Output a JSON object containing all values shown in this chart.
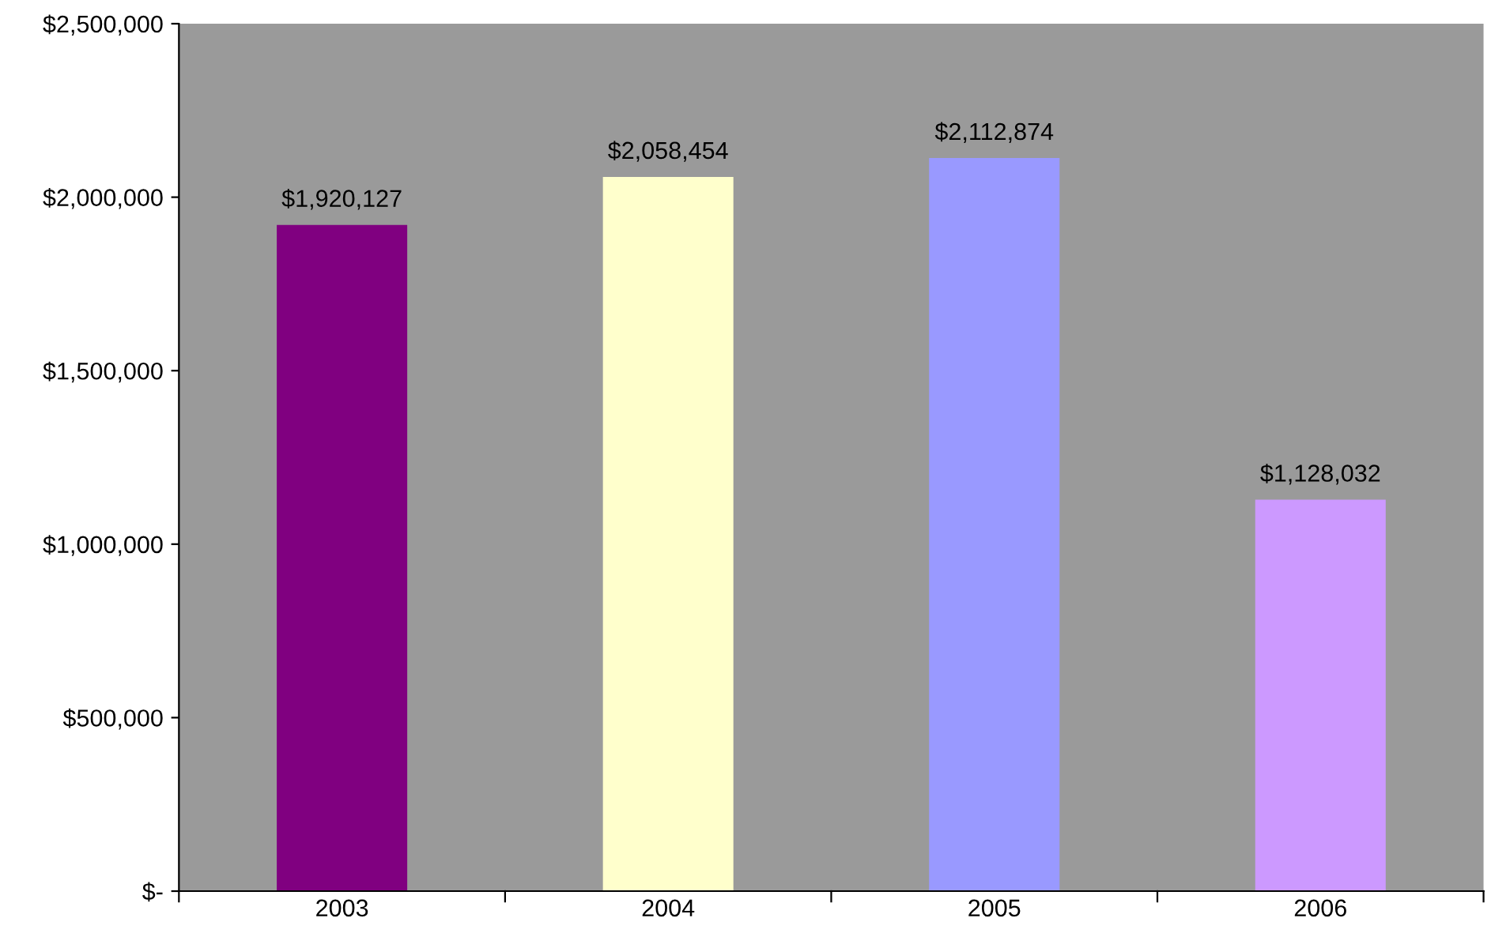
{
  "chart_data": {
    "type": "bar",
    "categories": [
      "2003",
      "2004",
      "2005",
      "2006"
    ],
    "values": [
      1920127,
      2058454,
      2112874,
      1128032
    ],
    "colors": [
      "#800080",
      "#ffffcc",
      "#9999ff",
      "#cc99ff"
    ],
    "value_labels": [
      "$1,920,127",
      "$2,058,454",
      "$2,112,874",
      "$1,128,032"
    ],
    "ylim": [
      0,
      2500000
    ],
    "yticks": [
      {
        "value": 0,
        "label": "$-"
      },
      {
        "value": 500000,
        "label": "$500,000"
      },
      {
        "value": 1000000,
        "label": "$1,000,000"
      },
      {
        "value": 1500000,
        "label": "$1,500,000"
      },
      {
        "value": 2000000,
        "label": "$2,000,000"
      },
      {
        "value": 2500000,
        "label": "$2,500,000"
      }
    ],
    "grid": false,
    "legend": false
  }
}
